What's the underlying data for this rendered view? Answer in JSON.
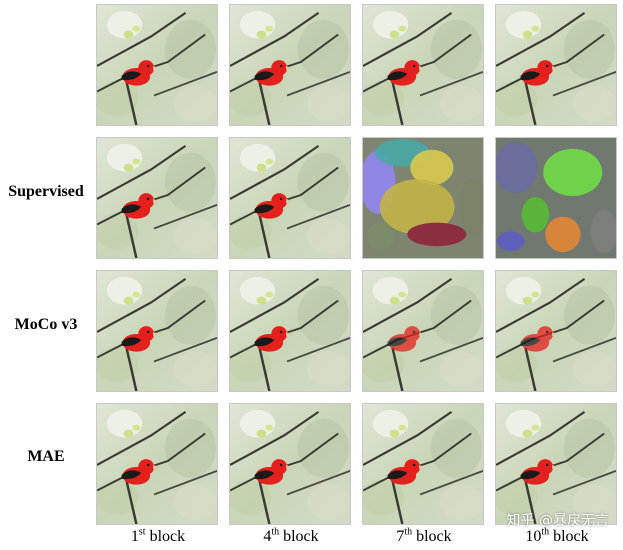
{
  "rows": [
    {
      "label": ""
    },
    {
      "label": "Supervised"
    },
    {
      "label": "MoCo v3"
    },
    {
      "label": "MAE"
    }
  ],
  "columns": [
    {
      "num": "1",
      "sup": "st",
      "word": "block"
    },
    {
      "num": "4",
      "sup": "th",
      "word": "block"
    },
    {
      "num": "7",
      "sup": "th",
      "word": "block"
    },
    {
      "num": "10",
      "sup": "th",
      "word": "block"
    }
  ],
  "watermark": "知乎 @暴戾无言"
}
